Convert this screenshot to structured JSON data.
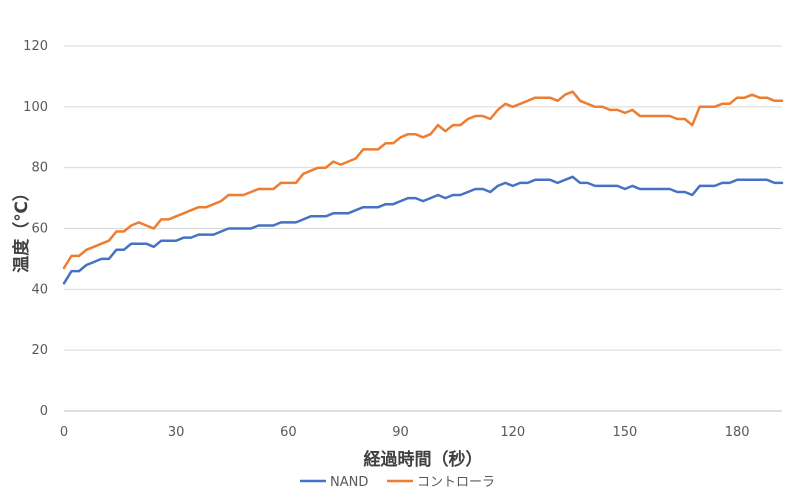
{
  "chart_data": {
    "type": "line",
    "xlabel": "経過時間（秒）",
    "ylabel": "温度（℃）",
    "xlim": [
      0,
      192
    ],
    "ylim": [
      0,
      120
    ],
    "xticks": [
      0,
      30,
      60,
      90,
      120,
      150,
      180
    ],
    "yticks": [
      0,
      20,
      40,
      60,
      80,
      100,
      120
    ],
    "grid": "horizontal",
    "legend_position": "bottom",
    "series": [
      {
        "name": "NAND",
        "color": "#4472C4",
        "points": [
          [
            0,
            42
          ],
          [
            2,
            46
          ],
          [
            4,
            46
          ],
          [
            6,
            48
          ],
          [
            8,
            49
          ],
          [
            10,
            50
          ],
          [
            12,
            50
          ],
          [
            14,
            53
          ],
          [
            16,
            53
          ],
          [
            18,
            55
          ],
          [
            20,
            55
          ],
          [
            22,
            55
          ],
          [
            24,
            54
          ],
          [
            26,
            56
          ],
          [
            28,
            56
          ],
          [
            30,
            56
          ],
          [
            32,
            57
          ],
          [
            34,
            57
          ],
          [
            36,
            58
          ],
          [
            38,
            58
          ],
          [
            40,
            58
          ],
          [
            42,
            59
          ],
          [
            44,
            60
          ],
          [
            46,
            60
          ],
          [
            48,
            60
          ],
          [
            50,
            60
          ],
          [
            52,
            61
          ],
          [
            54,
            61
          ],
          [
            56,
            61
          ],
          [
            58,
            62
          ],
          [
            60,
            62
          ],
          [
            62,
            62
          ],
          [
            64,
            63
          ],
          [
            66,
            64
          ],
          [
            68,
            64
          ],
          [
            70,
            64
          ],
          [
            72,
            65
          ],
          [
            74,
            65
          ],
          [
            76,
            65
          ],
          [
            78,
            66
          ],
          [
            80,
            67
          ],
          [
            82,
            67
          ],
          [
            84,
            67
          ],
          [
            86,
            68
          ],
          [
            88,
            68
          ],
          [
            90,
            69
          ],
          [
            92,
            70
          ],
          [
            94,
            70
          ],
          [
            96,
            69
          ],
          [
            98,
            70
          ],
          [
            100,
            71
          ],
          [
            102,
            70
          ],
          [
            104,
            71
          ],
          [
            106,
            71
          ],
          [
            108,
            72
          ],
          [
            110,
            73
          ],
          [
            112,
            73
          ],
          [
            114,
            72
          ],
          [
            116,
            74
          ],
          [
            118,
            75
          ],
          [
            120,
            74
          ],
          [
            122,
            75
          ],
          [
            124,
            75
          ],
          [
            126,
            76
          ],
          [
            128,
            76
          ],
          [
            130,
            76
          ],
          [
            132,
            75
          ],
          [
            134,
            76
          ],
          [
            136,
            77
          ],
          [
            138,
            75
          ],
          [
            140,
            75
          ],
          [
            142,
            74
          ],
          [
            144,
            74
          ],
          [
            146,
            74
          ],
          [
            148,
            74
          ],
          [
            150,
            73
          ],
          [
            152,
            74
          ],
          [
            154,
            73
          ],
          [
            156,
            73
          ],
          [
            158,
            73
          ],
          [
            160,
            73
          ],
          [
            162,
            73
          ],
          [
            164,
            72
          ],
          [
            166,
            72
          ],
          [
            168,
            71
          ],
          [
            170,
            74
          ],
          [
            172,
            74
          ],
          [
            174,
            74
          ],
          [
            176,
            75
          ],
          [
            178,
            75
          ],
          [
            180,
            76
          ],
          [
            182,
            76
          ],
          [
            184,
            76
          ],
          [
            186,
            76
          ],
          [
            188,
            76
          ],
          [
            190,
            75
          ],
          [
            192,
            75
          ]
        ]
      },
      {
        "name": "コントローラ",
        "color": "#ED7D31",
        "points": [
          [
            0,
            47
          ],
          [
            2,
            51
          ],
          [
            4,
            51
          ],
          [
            6,
            53
          ],
          [
            8,
            54
          ],
          [
            10,
            55
          ],
          [
            12,
            56
          ],
          [
            14,
            59
          ],
          [
            16,
            59
          ],
          [
            18,
            61
          ],
          [
            20,
            62
          ],
          [
            22,
            61
          ],
          [
            24,
            60
          ],
          [
            26,
            63
          ],
          [
            28,
            63
          ],
          [
            30,
            64
          ],
          [
            32,
            65
          ],
          [
            34,
            66
          ],
          [
            36,
            67
          ],
          [
            38,
            67
          ],
          [
            40,
            68
          ],
          [
            42,
            69
          ],
          [
            44,
            71
          ],
          [
            46,
            71
          ],
          [
            48,
            71
          ],
          [
            50,
            72
          ],
          [
            52,
            73
          ],
          [
            54,
            73
          ],
          [
            56,
            73
          ],
          [
            58,
            75
          ],
          [
            60,
            75
          ],
          [
            62,
            75
          ],
          [
            64,
            78
          ],
          [
            66,
            79
          ],
          [
            68,
            80
          ],
          [
            70,
            80
          ],
          [
            72,
            82
          ],
          [
            74,
            81
          ],
          [
            76,
            82
          ],
          [
            78,
            83
          ],
          [
            80,
            86
          ],
          [
            82,
            86
          ],
          [
            84,
            86
          ],
          [
            86,
            88
          ],
          [
            88,
            88
          ],
          [
            90,
            90
          ],
          [
            92,
            91
          ],
          [
            94,
            91
          ],
          [
            96,
            90
          ],
          [
            98,
            91
          ],
          [
            100,
            94
          ],
          [
            102,
            92
          ],
          [
            104,
            94
          ],
          [
            106,
            94
          ],
          [
            108,
            96
          ],
          [
            110,
            97
          ],
          [
            112,
            97
          ],
          [
            114,
            96
          ],
          [
            116,
            99
          ],
          [
            118,
            101
          ],
          [
            120,
            100
          ],
          [
            122,
            101
          ],
          [
            124,
            102
          ],
          [
            126,
            103
          ],
          [
            128,
            103
          ],
          [
            130,
            103
          ],
          [
            132,
            102
          ],
          [
            134,
            104
          ],
          [
            136,
            105
          ],
          [
            138,
            102
          ],
          [
            140,
            101
          ],
          [
            142,
            100
          ],
          [
            144,
            100
          ],
          [
            146,
            99
          ],
          [
            148,
            99
          ],
          [
            150,
            98
          ],
          [
            152,
            99
          ],
          [
            154,
            97
          ],
          [
            156,
            97
          ],
          [
            158,
            97
          ],
          [
            160,
            97
          ],
          [
            162,
            97
          ],
          [
            164,
            96
          ],
          [
            166,
            96
          ],
          [
            168,
            94
          ],
          [
            170,
            100
          ],
          [
            172,
            100
          ],
          [
            174,
            100
          ],
          [
            176,
            101
          ],
          [
            178,
            101
          ],
          [
            180,
            103
          ],
          [
            182,
            103
          ],
          [
            184,
            104
          ],
          [
            186,
            103
          ],
          [
            188,
            103
          ],
          [
            190,
            102
          ],
          [
            192,
            102
          ]
        ]
      }
    ]
  }
}
